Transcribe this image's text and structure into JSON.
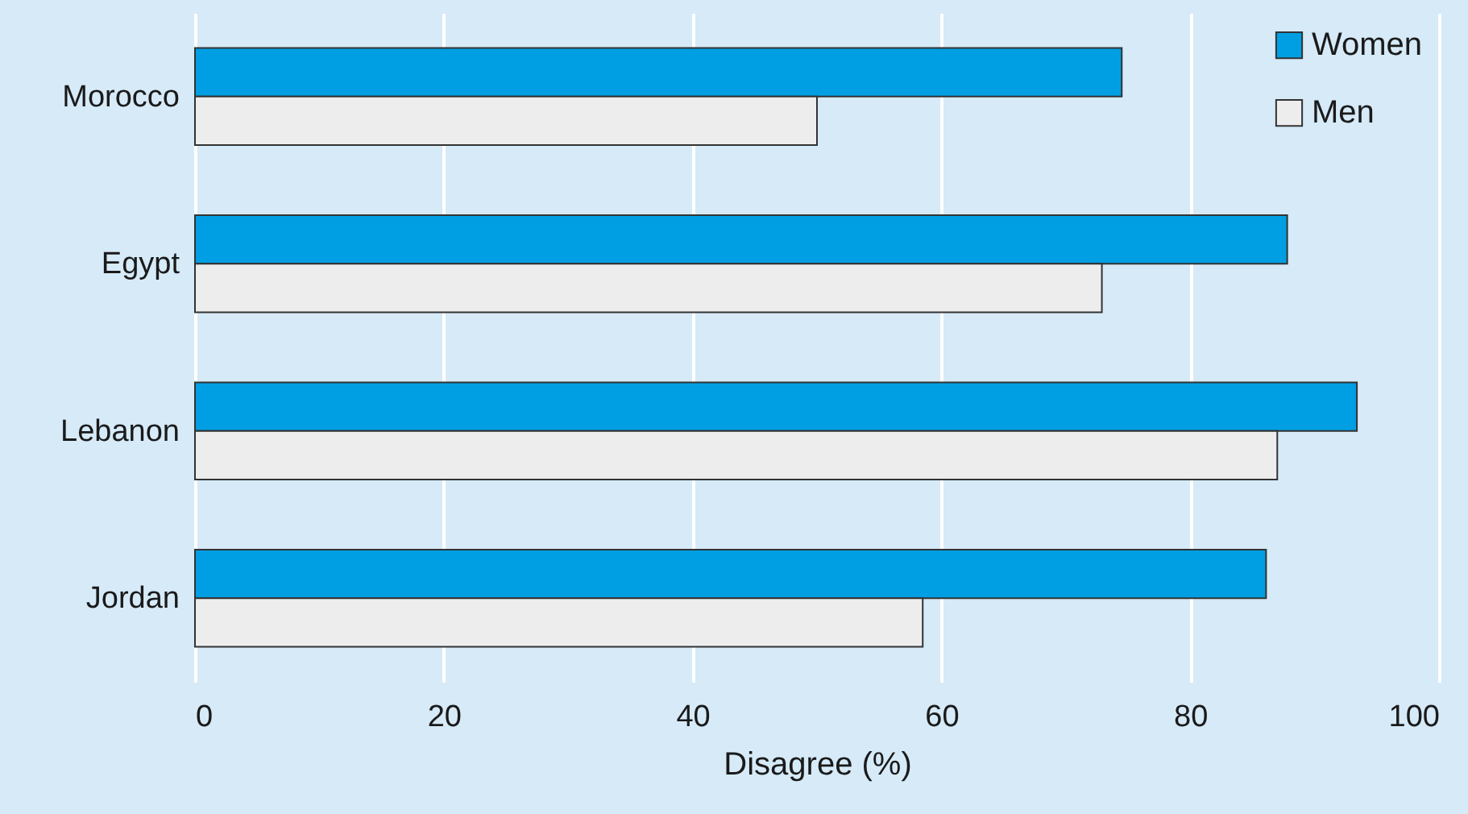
{
  "chart_data": {
    "type": "bar",
    "orientation": "horizontal",
    "xlabel": "Disagree (%)",
    "categories": [
      "Morocco",
      "Egypt",
      "Lebanon",
      "Jordan"
    ],
    "series": [
      {
        "name": "Women",
        "color": "#009fe3",
        "values": [
          74.5,
          87.8,
          93.4,
          86.1
        ]
      },
      {
        "name": "Men",
        "color": "#ededed",
        "values": [
          50.0,
          72.9,
          87.0,
          58.5
        ]
      }
    ],
    "xlim": [
      0,
      100
    ],
    "xticks": [
      0,
      20,
      40,
      60,
      80,
      100
    ],
    "grid": "x",
    "legend": "top right"
  }
}
